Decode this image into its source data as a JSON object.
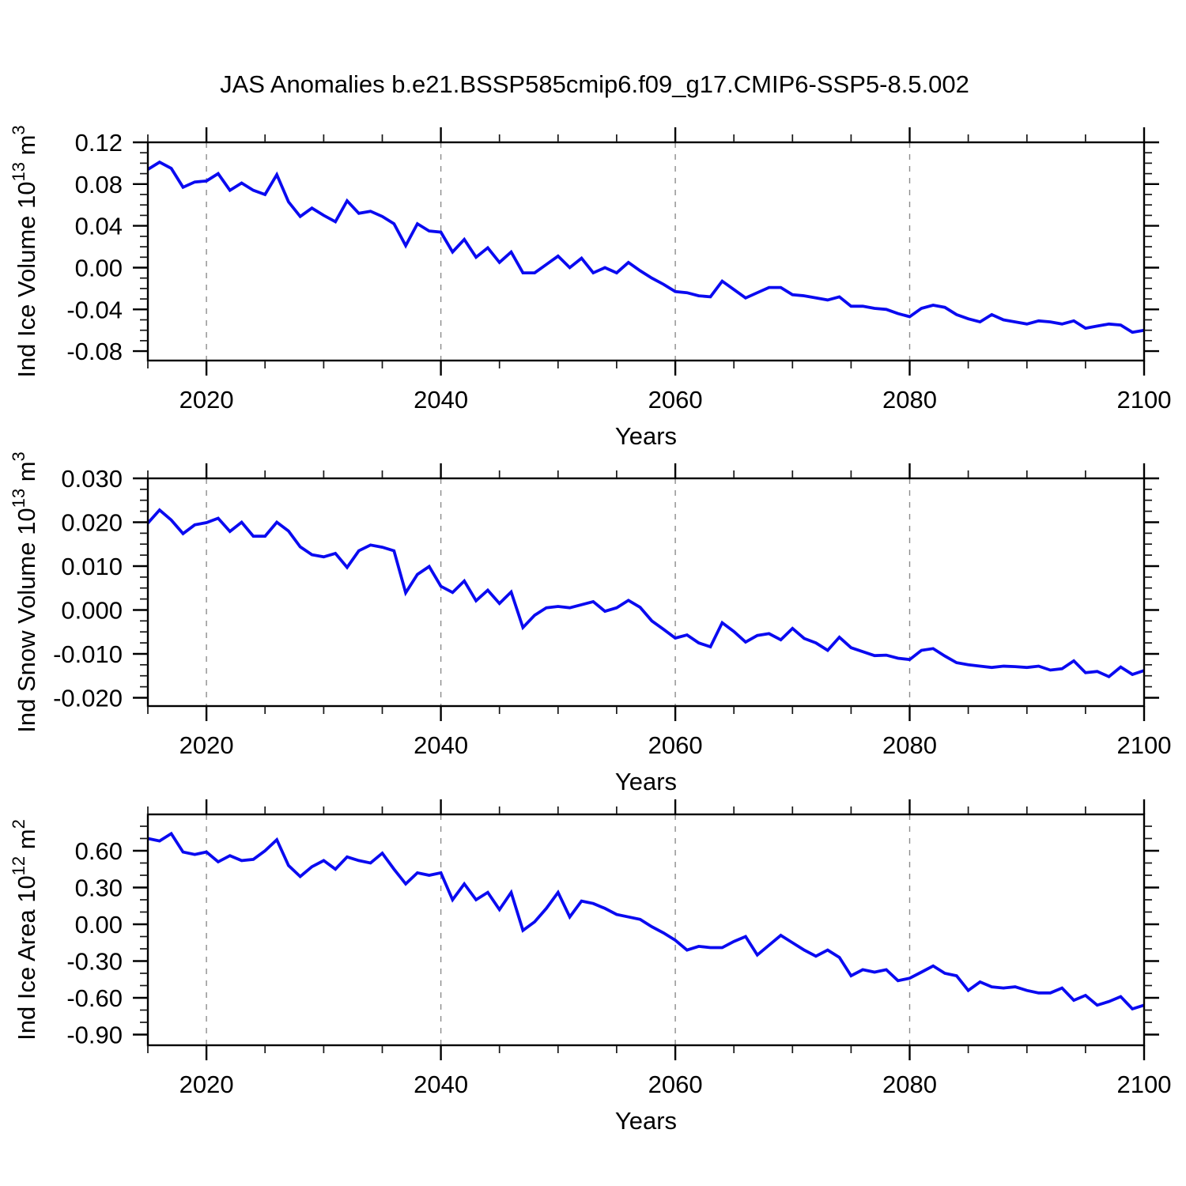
{
  "title": "JAS Anomalies b.e21.BSSP585cmip6.f09_g17.CMIP6-SSP5-8.5.002",
  "colors": {
    "line": "#0a0af0",
    "grid": "#8c8c8c",
    "frame": "#000000",
    "text": "#000000"
  },
  "x_axis": {
    "label": "Years",
    "min": 2015,
    "max": 2100,
    "major_ticks": [
      2020,
      2040,
      2060,
      2080,
      2100
    ],
    "tick_labels": [
      "2020",
      "2040",
      "2060",
      "2080",
      "2100"
    ],
    "minor_step": 5,
    "grid_years": [
      2020,
      2040,
      2060,
      2080
    ]
  },
  "years": [
    2015,
    2016,
    2017,
    2018,
    2019,
    2020,
    2021,
    2022,
    2023,
    2024,
    2025,
    2026,
    2027,
    2028,
    2029,
    2030,
    2031,
    2032,
    2033,
    2034,
    2035,
    2036,
    2037,
    2038,
    2039,
    2040,
    2041,
    2042,
    2043,
    2044,
    2045,
    2046,
    2047,
    2048,
    2049,
    2050,
    2051,
    2052,
    2053,
    2054,
    2055,
    2056,
    2057,
    2058,
    2059,
    2060,
    2061,
    2062,
    2063,
    2064,
    2065,
    2066,
    2067,
    2068,
    2069,
    2070,
    2071,
    2072,
    2073,
    2074,
    2075,
    2076,
    2077,
    2078,
    2079,
    2080,
    2081,
    2082,
    2083,
    2084,
    2085,
    2086,
    2087,
    2088,
    2089,
    2090,
    2091,
    2092,
    2093,
    2094,
    2095,
    2096,
    2097,
    2098,
    2099,
    2100
  ],
  "chart_data": [
    {
      "type": "line",
      "name": "ice-volume",
      "ylabel": "Ind Ice Volume 10^13 m^3",
      "ylabel_parts": [
        [
          "Ind Ice Volume 10",
          false
        ],
        [
          "13",
          true
        ],
        [
          " m",
          false
        ],
        [
          "3",
          true
        ]
      ],
      "xlabel": "Years",
      "ylim": [
        -0.089,
        0.12
      ],
      "yticks": [
        0.12,
        0.08,
        0.04,
        0.0,
        -0.04,
        -0.08
      ],
      "ytick_labels": [
        "0.12",
        "0.08",
        "0.04",
        "0.00",
        "-0.04",
        "-0.08"
      ],
      "y_minor_step": 0.01,
      "grid": "x-dashed",
      "legend": "none",
      "values": [
        0.094,
        0.101,
        0.095,
        0.077,
        0.082,
        0.083,
        0.09,
        0.074,
        0.081,
        0.074,
        0.07,
        0.089,
        0.063,
        0.049,
        0.057,
        0.05,
        0.044,
        0.064,
        0.052,
        0.054,
        0.049,
        0.042,
        0.021,
        0.042,
        0.035,
        0.034,
        0.015,
        0.027,
        0.01,
        0.019,
        0.005,
        0.015,
        -0.005,
        -0.005,
        0.003,
        0.011,
        0.0,
        0.009,
        -0.005,
        0.0,
        -0.005,
        0.005,
        -0.003,
        -0.01,
        -0.016,
        -0.023,
        -0.024,
        -0.027,
        -0.028,
        -0.013,
        -0.021,
        -0.029,
        -0.024,
        -0.019,
        -0.019,
        -0.026,
        -0.027,
        -0.029,
        -0.031,
        -0.028,
        -0.037,
        -0.037,
        -0.039,
        -0.04,
        -0.044,
        -0.047,
        -0.039,
        -0.036,
        -0.038,
        -0.045,
        -0.049,
        -0.052,
        -0.045,
        -0.05,
        -0.052,
        -0.054,
        -0.051,
        -0.052,
        -0.054,
        -0.051,
        -0.058,
        -0.056,
        -0.054,
        -0.055,
        -0.062,
        -0.06
      ]
    },
    {
      "type": "line",
      "name": "snow-volume",
      "ylabel": "Ind Snow Volume 10^13 m^3",
      "ylabel_parts": [
        [
          "Ind Snow Volume 10",
          false
        ],
        [
          "13",
          true
        ],
        [
          " m",
          false
        ],
        [
          "3",
          true
        ]
      ],
      "xlabel": "Years",
      "ylim": [
        -0.0219,
        0.03
      ],
      "yticks": [
        0.03,
        0.02,
        0.01,
        0.0,
        -0.01,
        -0.02
      ],
      "ytick_labels": [
        "0.030",
        "0.020",
        "0.010",
        "0.000",
        "-0.010",
        "-0.020"
      ],
      "y_minor_step": 0.0025,
      "grid": "x-dashed",
      "legend": "none",
      "values": [
        0.0198,
        0.0228,
        0.0205,
        0.0174,
        0.0194,
        0.0199,
        0.0209,
        0.0179,
        0.02,
        0.0168,
        0.0168,
        0.02,
        0.018,
        0.0144,
        0.0126,
        0.0121,
        0.0129,
        0.0097,
        0.0135,
        0.0148,
        0.0143,
        0.0135,
        0.0039,
        0.0081,
        0.0099,
        0.0054,
        0.004,
        0.0066,
        0.0021,
        0.0045,
        0.0015,
        0.0041,
        -0.004,
        -0.0012,
        0.0005,
        0.0008,
        0.0005,
        0.0012,
        0.0019,
        -0.0003,
        0.0005,
        0.0022,
        0.0006,
        -0.0025,
        -0.0044,
        -0.0064,
        -0.0057,
        -0.0075,
        -0.0084,
        -0.0029,
        -0.0049,
        -0.0073,
        -0.0058,
        -0.0054,
        -0.0068,
        -0.0042,
        -0.0065,
        -0.0075,
        -0.0092,
        -0.0062,
        -0.0086,
        -0.0095,
        -0.0104,
        -0.0103,
        -0.011,
        -0.0113,
        -0.0092,
        -0.0088,
        -0.0105,
        -0.012,
        -0.0125,
        -0.0128,
        -0.0131,
        -0.0128,
        -0.0129,
        -0.0131,
        -0.0128,
        -0.0137,
        -0.0134,
        -0.0116,
        -0.0143,
        -0.014,
        -0.0152,
        -0.013,
        -0.0147,
        -0.0138
      ]
    },
    {
      "type": "line",
      "name": "ice-area",
      "ylabel": "Ind Ice Area 10^12 m^2",
      "ylabel_parts": [
        [
          "Ind Ice Area 10",
          false
        ],
        [
          "12",
          true
        ],
        [
          " m",
          false
        ],
        [
          "2",
          true
        ]
      ],
      "xlabel": "Years",
      "ylim": [
        -0.987,
        0.897
      ],
      "yticks": [
        0.6,
        0.3,
        0.0,
        -0.3,
        -0.6,
        -0.9
      ],
      "ytick_labels": [
        "0.60",
        "0.30",
        "0.00",
        "-0.30",
        "-0.60",
        "-0.90"
      ],
      "y_minor_step": 0.1,
      "grid": "x-dashed",
      "legend": "none",
      "values": [
        0.7,
        0.68,
        0.74,
        0.59,
        0.57,
        0.59,
        0.51,
        0.56,
        0.52,
        0.53,
        0.6,
        0.69,
        0.48,
        0.39,
        0.47,
        0.52,
        0.45,
        0.55,
        0.52,
        0.5,
        0.58,
        0.45,
        0.33,
        0.42,
        0.4,
        0.42,
        0.2,
        0.33,
        0.2,
        0.26,
        0.12,
        0.26,
        -0.05,
        0.02,
        0.13,
        0.26,
        0.06,
        0.19,
        0.17,
        0.13,
        0.08,
        0.06,
        0.04,
        -0.02,
        -0.07,
        -0.13,
        -0.21,
        -0.18,
        -0.19,
        -0.19,
        -0.14,
        -0.1,
        -0.25,
        -0.17,
        -0.09,
        -0.15,
        -0.21,
        -0.26,
        -0.21,
        -0.27,
        -0.42,
        -0.37,
        -0.39,
        -0.37,
        -0.46,
        -0.44,
        -0.39,
        -0.34,
        -0.4,
        -0.42,
        -0.54,
        -0.47,
        -0.51,
        -0.52,
        -0.51,
        -0.54,
        -0.56,
        -0.56,
        -0.52,
        -0.62,
        -0.58,
        -0.66,
        -0.63,
        -0.59,
        -0.69,
        -0.66
      ]
    }
  ]
}
